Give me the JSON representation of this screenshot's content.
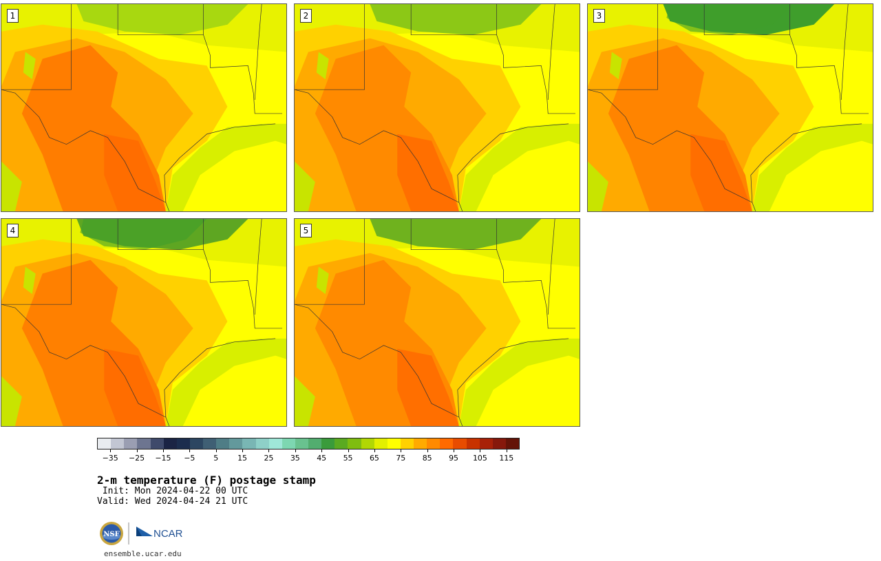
{
  "panels": [
    {
      "label": "1"
    },
    {
      "label": "2"
    },
    {
      "label": "3"
    },
    {
      "label": "4"
    },
    {
      "label": "5"
    }
  ],
  "colorbar": {
    "colors": [
      "#e9ecf0",
      "#c2c6d3",
      "#9a9eb2",
      "#6d7590",
      "#3f4a6b",
      "#1b2444",
      "#1c2d4e",
      "#2c4661",
      "#3f5f74",
      "#4f7d86",
      "#63999c",
      "#79b6b4",
      "#8ed0c8",
      "#9fe7d8",
      "#7dd7b1",
      "#69c28f",
      "#52ad6f",
      "#3a9b3b",
      "#5aaa21",
      "#7fbd10",
      "#b1d704",
      "#e3ef00",
      "#ffff00",
      "#ffd100",
      "#ffaa00",
      "#ff8a00",
      "#ff6a00",
      "#e84c00",
      "#c83200",
      "#a82108",
      "#86180b",
      "#641307"
    ],
    "tick_labels": [
      "−35",
      "−25",
      "−15",
      "−5",
      "5",
      "15",
      "25",
      "35",
      "45",
      "55",
      "65",
      "75",
      "85",
      "95",
      "105",
      "115"
    ]
  },
  "title": "2-m temperature (F) postage stamp",
  "init": " Init: Mon 2024-04-22 00 UTC",
  "valid": "Valid: Wed 2024-04-24 21 UTC",
  "footer": {
    "nsf_logo_text": "NSF",
    "ncar_logo_text": "NCAR",
    "url": "ensemble.ucar.edu"
  }
}
